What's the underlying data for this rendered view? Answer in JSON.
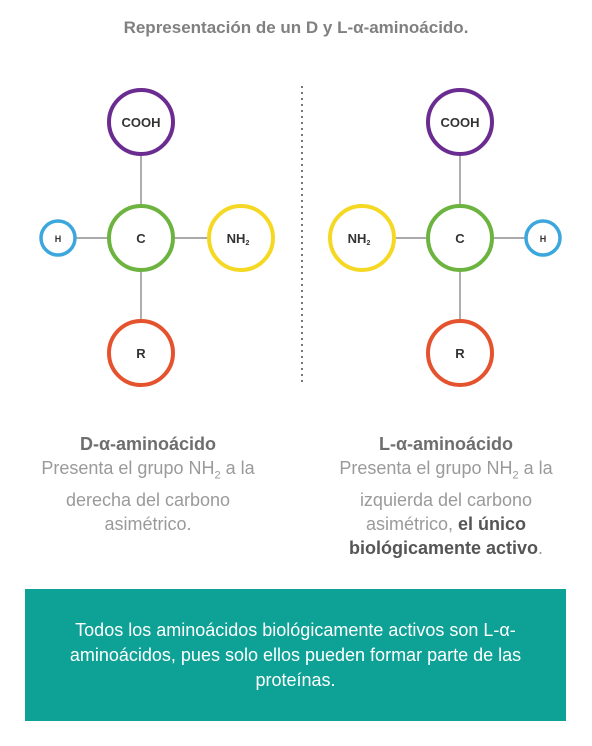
{
  "title": "Representación de un D y L-α-aminoácido.",
  "colors": {
    "cooh": "#6b2c91",
    "carbon": "#6cb33f",
    "nh2": "#f5d823",
    "hydrogen": "#3ba7dc",
    "r": "#e4532e",
    "banner": "#0ea196"
  },
  "d_molecule": {
    "top": "COOH",
    "center": "C",
    "left": "H",
    "right": "NH",
    "right_sub": "2",
    "bottom": "R"
  },
  "l_molecule": {
    "top": "COOH",
    "center": "C",
    "left": "NH",
    "left_sub": "2",
    "right": "H",
    "bottom": "R"
  },
  "d_caption": {
    "heading": "D-α-aminoácido",
    "text_before": "Presenta el grupo NH",
    "sub": "2",
    "text_after": " a la derecha del carbono asimétrico."
  },
  "l_caption": {
    "heading": "L-α-aminoácido",
    "text_before": "Presenta el grupo NH",
    "sub": "2",
    "text_middle": " a la izquierda del carbono asimétrico, ",
    "bold": "el único biológicamente activo",
    "end": "."
  },
  "banner": {
    "text": "Todos los aminoácidos biológicamente activos son L-α-aminoácidos, pues solo ellos pueden formar parte de las proteínas."
  }
}
